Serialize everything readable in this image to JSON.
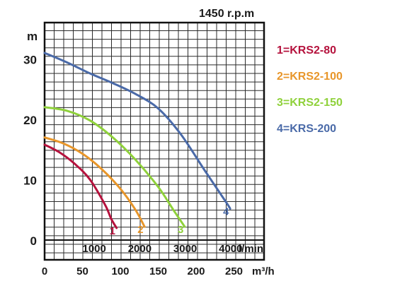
{
  "chart_data": {
    "type": "line",
    "title": "1450 r.p.m",
    "ylabel": "m",
    "y_unit": "m",
    "ylim": [
      0,
      35
    ],
    "y_ticks": [
      0,
      10,
      20,
      30
    ],
    "x_axes": [
      {
        "unit": "l/min",
        "ticks": [
          1000,
          2000,
          3000,
          4000
        ]
      },
      {
        "unit": "m³/h",
        "lim": [
          0,
          290
        ],
        "ticks": [
          0,
          50,
          100,
          150,
          200,
          250
        ]
      }
    ],
    "grid": true,
    "legend_position": "right",
    "series": [
      {
        "name": "1=KRS2-80",
        "marker": "1",
        "color": "#b5123d",
        "x": [
          0,
          20,
          40,
          60,
          80,
          88,
          95
        ],
        "y": [
          15.8,
          14.5,
          12.6,
          10.0,
          5.8,
          3.5,
          2.0
        ]
      },
      {
        "name": "2=KRS2-100",
        "marker": "2",
        "color": "#e8962a",
        "x": [
          0,
          25,
          50,
          75,
          100,
          120,
          132
        ],
        "y": [
          17.0,
          16.0,
          14.3,
          11.8,
          8.5,
          5.0,
          2.2
        ]
      },
      {
        "name": "3=KRS2-150",
        "marker": "3",
        "color": "#8fd13b",
        "x": [
          0,
          30,
          60,
          90,
          120,
          150,
          170,
          185
        ],
        "y": [
          22.0,
          21.4,
          19.8,
          17.0,
          13.3,
          8.8,
          5.0,
          2.2
        ]
      },
      {
        "name": "4=KRS-200",
        "marker": "4",
        "color": "#4a6aa8",
        "x": [
          0,
          30,
          60,
          90,
          120,
          150,
          180,
          210,
          240,
          245
        ],
        "y": [
          31.0,
          29.4,
          27.6,
          26.0,
          24.2,
          21.8,
          17.5,
          11.8,
          6.2,
          5.2
        ]
      }
    ]
  }
}
